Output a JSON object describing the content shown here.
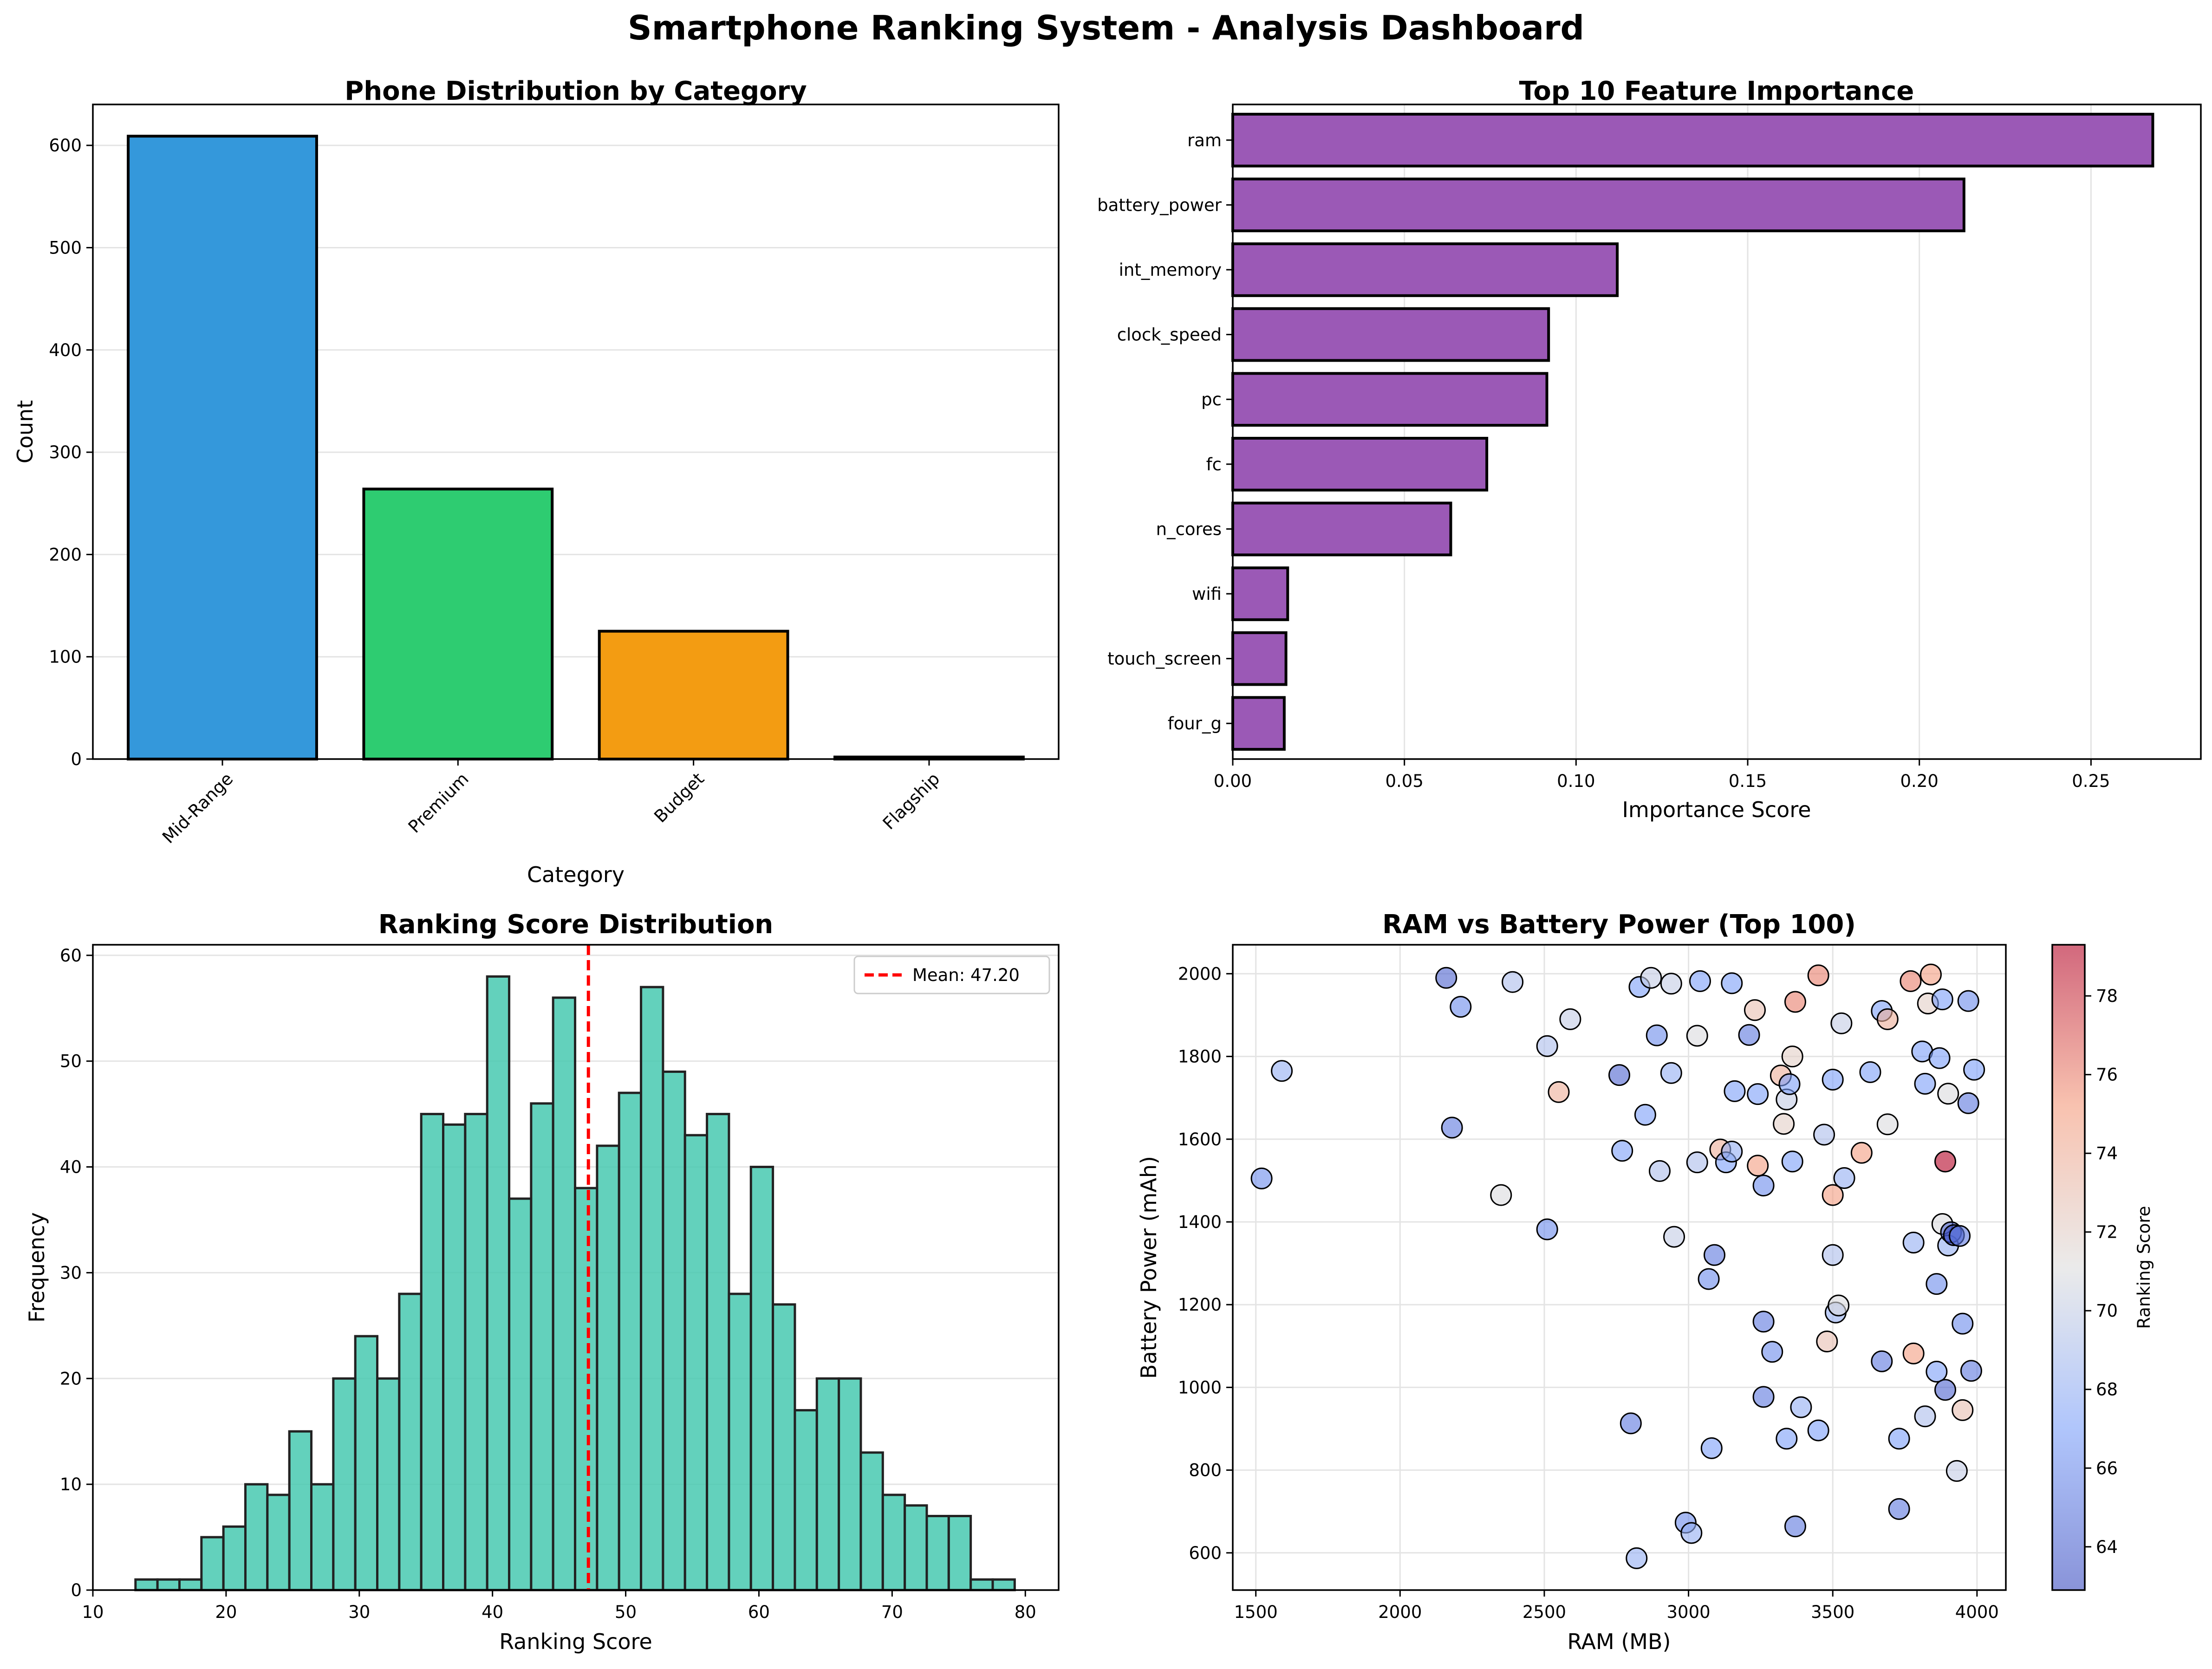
{
  "title": "Smartphone Ranking System - Analysis Dashboard",
  "colors": {
    "bars_category": [
      "#3498db",
      "#2ecc71",
      "#f39c12",
      "#e74c3c"
    ],
    "feature_bar": "#9b59b6",
    "histogram": "#48c9b0",
    "mean_line": "#ff0000"
  },
  "chart_data": [
    {
      "id": "category",
      "type": "bar",
      "title": "Phone Distribution by Category",
      "xlabel": "Category",
      "ylabel": "Count",
      "categories": [
        "Mid-Range",
        "Premium",
        "Budget",
        "Flagship"
      ],
      "values": [
        609,
        264,
        125,
        2
      ],
      "ylim": [
        0,
        640
      ],
      "yticks": [
        0,
        100,
        200,
        300,
        400,
        500,
        600
      ],
      "grid": "y"
    },
    {
      "id": "features",
      "type": "bar",
      "orientation": "horizontal",
      "title": "Top 10 Feature Importance",
      "xlabel": "Importance Score",
      "ylabel": "",
      "categories": [
        "ram",
        "battery_power",
        "int_memory",
        "clock_speed",
        "pc",
        "fc",
        "n_cores",
        "wifi",
        "touch_screen",
        "four_g"
      ],
      "values": [
        0.268,
        0.213,
        0.112,
        0.092,
        0.0915,
        0.074,
        0.0635,
        0.016,
        0.0155,
        0.015
      ],
      "xlim": [
        0,
        0.282
      ],
      "xticks": [
        0.0,
        0.05,
        0.1,
        0.15,
        0.2,
        0.25
      ],
      "xticklabels": [
        "0.00",
        "0.05",
        "0.10",
        "0.15",
        "0.20",
        "0.25"
      ],
      "grid": "x"
    },
    {
      "id": "histogram",
      "type": "bar",
      "subtype": "histogram",
      "title": "Ranking Score Distribution",
      "xlabel": "Ranking Score",
      "ylabel": "Frequency",
      "bin_start": 13.2,
      "bin_width": 1.65,
      "counts": [
        1,
        1,
        1,
        5,
        6,
        10,
        9,
        15,
        10,
        20,
        24,
        20,
        28,
        45,
        44,
        45,
        58,
        37,
        46,
        56,
        38,
        42,
        47,
        57,
        49,
        43,
        45,
        28,
        40,
        27,
        17,
        20,
        20,
        13,
        9,
        8,
        7,
        7,
        1,
        1
      ],
      "xlim": [
        10,
        82.5
      ],
      "ylim": [
        0,
        61
      ],
      "xticks": [
        10,
        20,
        30,
        40,
        50,
        60,
        70,
        80
      ],
      "yticks": [
        0,
        10,
        20,
        30,
        40,
        50,
        60
      ],
      "mean": 47.2,
      "legend": {
        "label": "Mean: 47.20",
        "position": "upper right"
      },
      "grid": "y"
    },
    {
      "id": "scatter",
      "type": "scatter",
      "title": "RAM vs Battery Power (Top 100)",
      "xlabel": "RAM (MB)",
      "ylabel": "Battery Power (mAh)",
      "colorbar_label": "Ranking Score",
      "colormap": "coolwarm",
      "clim": [
        62.9,
        79.3
      ],
      "colorbar_ticks": [
        64,
        66,
        68,
        70,
        72,
        74,
        76,
        78
      ],
      "xlim": [
        1420,
        4100
      ],
      "ylim": [
        510,
        2070
      ],
      "xticks": [
        1500,
        2000,
        2500,
        3000,
        3500,
        4000
      ],
      "yticks": [
        600,
        800,
        1000,
        1200,
        1400,
        1600,
        1800,
        2000
      ],
      "grid": "both",
      "points": [
        {
          "x": 1520,
          "y": 1505,
          "score": 66
        },
        {
          "x": 1590,
          "y": 1765,
          "score": 68
        },
        {
          "x": 2160,
          "y": 1990,
          "score": 64
        },
        {
          "x": 2210,
          "y": 1920,
          "score": 66
        },
        {
          "x": 2180,
          "y": 1628,
          "score": 65
        },
        {
          "x": 2390,
          "y": 1980,
          "score": 69
        },
        {
          "x": 2350,
          "y": 1465,
          "score": 71
        },
        {
          "x": 2510,
          "y": 1825,
          "score": 69
        },
        {
          "x": 2590,
          "y": 1890,
          "score": 70
        },
        {
          "x": 2550,
          "y": 1714,
          "score": 74
        },
        {
          "x": 2510,
          "y": 1382,
          "score": 66
        },
        {
          "x": 2760,
          "y": 1755,
          "score": 64
        },
        {
          "x": 2770,
          "y": 1572,
          "score": 67
        },
        {
          "x": 2830,
          "y": 1968,
          "score": 67
        },
        {
          "x": 2870,
          "y": 1990,
          "score": 70
        },
        {
          "x": 2850,
          "y": 1659,
          "score": 67
        },
        {
          "x": 2890,
          "y": 1851,
          "score": 66
        },
        {
          "x": 2900,
          "y": 1523,
          "score": 69
        },
        {
          "x": 2940,
          "y": 1976,
          "score": 70
        },
        {
          "x": 2940,
          "y": 1760,
          "score": 68
        },
        {
          "x": 2950,
          "y": 1364,
          "score": 70
        },
        {
          "x": 2800,
          "y": 913,
          "score": 65
        },
        {
          "x": 2820,
          "y": 587,
          "score": 68
        },
        {
          "x": 2990,
          "y": 673,
          "score": 66
        },
        {
          "x": 3010,
          "y": 648,
          "score": 68
        },
        {
          "x": 3030,
          "y": 1850,
          "score": 71
        },
        {
          "x": 3040,
          "y": 1982,
          "score": 67
        },
        {
          "x": 3030,
          "y": 1544,
          "score": 69
        },
        {
          "x": 3070,
          "y": 1262,
          "score": 66
        },
        {
          "x": 3090,
          "y": 1320,
          "score": 65
        },
        {
          "x": 3110,
          "y": 1575,
          "score": 74
        },
        {
          "x": 3130,
          "y": 1544,
          "score": 67
        },
        {
          "x": 3150,
          "y": 1977,
          "score": 67
        },
        {
          "x": 3160,
          "y": 1716,
          "score": 67
        },
        {
          "x": 3150,
          "y": 1570,
          "score": 68
        },
        {
          "x": 3080,
          "y": 853,
          "score": 67
        },
        {
          "x": 3210,
          "y": 1852,
          "score": 65
        },
        {
          "x": 3230,
          "y": 1912,
          "score": 73
        },
        {
          "x": 3240,
          "y": 1709,
          "score": 67
        },
        {
          "x": 3240,
          "y": 1536,
          "score": 75
        },
        {
          "x": 3260,
          "y": 1488,
          "score": 66
        },
        {
          "x": 3260,
          "y": 1159,
          "score": 65
        },
        {
          "x": 3260,
          "y": 977,
          "score": 65
        },
        {
          "x": 3290,
          "y": 1086,
          "score": 66
        },
        {
          "x": 3320,
          "y": 1754,
          "score": 74
        },
        {
          "x": 3330,
          "y": 1637,
          "score": 72
        },
        {
          "x": 3340,
          "y": 1696,
          "score": 70
        },
        {
          "x": 3350,
          "y": 1733,
          "score": 67
        },
        {
          "x": 3360,
          "y": 1800,
          "score": 72
        },
        {
          "x": 3370,
          "y": 1932,
          "score": 76
        },
        {
          "x": 3360,
          "y": 1546,
          "score": 67
        },
        {
          "x": 3340,
          "y": 876,
          "score": 67
        },
        {
          "x": 3370,
          "y": 664,
          "score": 65
        },
        {
          "x": 3390,
          "y": 952,
          "score": 68
        },
        {
          "x": 3450,
          "y": 1996,
          "score": 76
        },
        {
          "x": 3470,
          "y": 1611,
          "score": 69
        },
        {
          "x": 3500,
          "y": 1744,
          "score": 67
        },
        {
          "x": 3500,
          "y": 1465,
          "score": 75
        },
        {
          "x": 3500,
          "y": 1320,
          "score": 69
        },
        {
          "x": 3510,
          "y": 1181,
          "score": 68
        },
        {
          "x": 3520,
          "y": 1198,
          "score": 71
        },
        {
          "x": 3480,
          "y": 1111,
          "score": 73
        },
        {
          "x": 3450,
          "y": 896,
          "score": 67
        },
        {
          "x": 3530,
          "y": 1880,
          "score": 70
        },
        {
          "x": 3540,
          "y": 1506,
          "score": 68
        },
        {
          "x": 3600,
          "y": 1567,
          "score": 75
        },
        {
          "x": 3630,
          "y": 1762,
          "score": 67
        },
        {
          "x": 3670,
          "y": 1910,
          "score": 67
        },
        {
          "x": 3690,
          "y": 1890,
          "score": 74
        },
        {
          "x": 3690,
          "y": 1636,
          "score": 71
        },
        {
          "x": 3670,
          "y": 1063,
          "score": 65
        },
        {
          "x": 3730,
          "y": 876,
          "score": 67
        },
        {
          "x": 3730,
          "y": 706,
          "score": 65
        },
        {
          "x": 3770,
          "y": 1982,
          "score": 76
        },
        {
          "x": 3780,
          "y": 1082,
          "score": 75
        },
        {
          "x": 3780,
          "y": 1350,
          "score": 68
        },
        {
          "x": 3810,
          "y": 1812,
          "score": 67
        },
        {
          "x": 3820,
          "y": 1734,
          "score": 67
        },
        {
          "x": 3820,
          "y": 930,
          "score": 69
        },
        {
          "x": 3830,
          "y": 1928,
          "score": 72
        },
        {
          "x": 3840,
          "y": 1998,
          "score": 75
        },
        {
          "x": 3860,
          "y": 1250,
          "score": 66
        },
        {
          "x": 3860,
          "y": 1038,
          "score": 67
        },
        {
          "x": 3870,
          "y": 1796,
          "score": 67
        },
        {
          "x": 3880,
          "y": 1938,
          "score": 67
        },
        {
          "x": 3880,
          "y": 1395,
          "score": 71
        },
        {
          "x": 3890,
          "y": 1546,
          "score": 79.3
        },
        {
          "x": 3890,
          "y": 994,
          "score": 64
        },
        {
          "x": 3900,
          "y": 1710,
          "score": 71
        },
        {
          "x": 3900,
          "y": 1343,
          "score": 68
        },
        {
          "x": 3910,
          "y": 1375,
          "score": 64
        },
        {
          "x": 3920,
          "y": 1368,
          "score": 63
        },
        {
          "x": 3930,
          "y": 798,
          "score": 70
        },
        {
          "x": 3940,
          "y": 1366,
          "score": 65
        },
        {
          "x": 3950,
          "y": 1154,
          "score": 66
        },
        {
          "x": 3950,
          "y": 945,
          "score": 73
        },
        {
          "x": 3970,
          "y": 1934,
          "score": 66
        },
        {
          "x": 3970,
          "y": 1687,
          "score": 65
        },
        {
          "x": 3980,
          "y": 1040,
          "score": 65
        },
        {
          "x": 3990,
          "y": 1768,
          "score": 67
        }
      ]
    }
  ]
}
